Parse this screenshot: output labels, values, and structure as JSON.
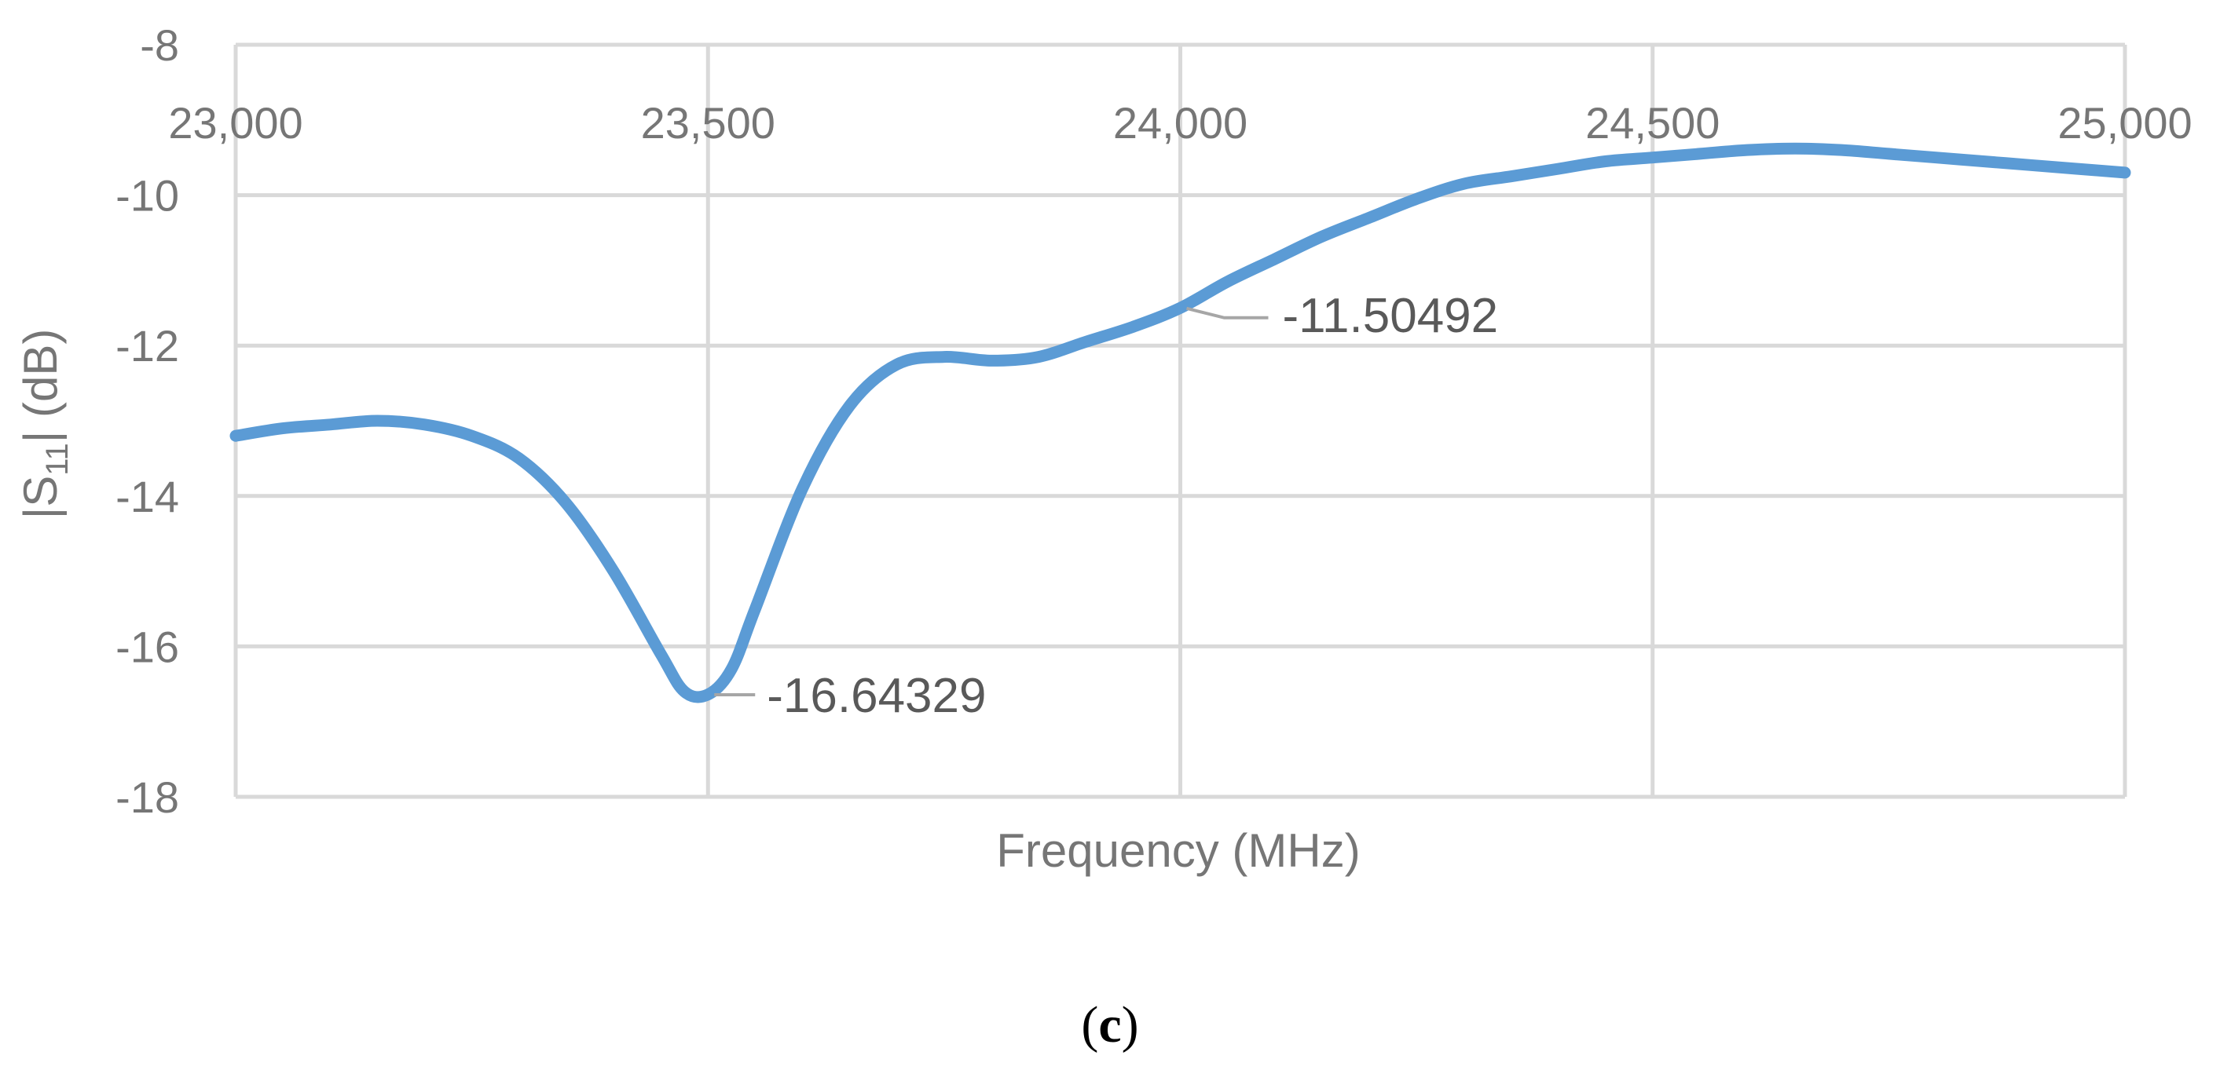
{
  "chart_data": {
    "type": "line",
    "title": "",
    "xlabel": "Frequency (MHz)",
    "ylabel": {
      "prefix": "|S",
      "subscript": "11",
      "suffix": "| (dB)"
    },
    "xlim": [
      23000,
      25000
    ],
    "ylim": [
      -18,
      -8
    ],
    "x_ticks": [
      23000,
      23500,
      24000,
      24500,
      25000
    ],
    "x_tick_labels": [
      "23,000",
      "23,500",
      "24,000",
      "24,500",
      "25,000"
    ],
    "y_ticks": [
      -18,
      -16,
      -14,
      -12,
      -10,
      -8
    ],
    "y_tick_labels": [
      "-18",
      "-16",
      "-14",
      "-12",
      "-10",
      "-8"
    ],
    "grid": true,
    "legend": "none",
    "series_color": "#5b9bd5",
    "series": [
      {
        "x": [
          23000,
          23050,
          23100,
          23150,
          23200,
          23250,
          23300,
          23350,
          23400,
          23450,
          23475,
          23500,
          23525,
          23550,
          23600,
          23650,
          23700,
          23750,
          23800,
          23850,
          23900,
          23950,
          24000,
          24050,
          24100,
          24150,
          24200,
          24250,
          24300,
          24350,
          24400,
          24450,
          24500,
          24550,
          24600,
          24650,
          24700,
          24750,
          24800,
          24850,
          24900,
          24950,
          25000
        ],
        "y": [
          -13.2,
          -13.1,
          -13.05,
          -13.0,
          -13.05,
          -13.2,
          -13.5,
          -14.1,
          -15.0,
          -16.1,
          -16.6,
          -16.64,
          -16.3,
          -15.5,
          -13.9,
          -12.8,
          -12.25,
          -12.15,
          -12.2,
          -12.15,
          -11.95,
          -11.75,
          -11.5,
          -11.15,
          -10.85,
          -10.55,
          -10.3,
          -10.05,
          -9.85,
          -9.75,
          -9.65,
          -9.55,
          -9.5,
          -9.45,
          -9.4,
          -9.38,
          -9.4,
          -9.45,
          -9.5,
          -9.55,
          -9.6,
          -9.65,
          -9.7
        ]
      }
    ],
    "annotations": [
      {
        "x": 23500,
        "y": -16.64329,
        "text": "-16.64329"
      },
      {
        "x": 24000,
        "y": -11.50492,
        "text": "-11.50492"
      }
    ]
  },
  "panel_label": "c"
}
